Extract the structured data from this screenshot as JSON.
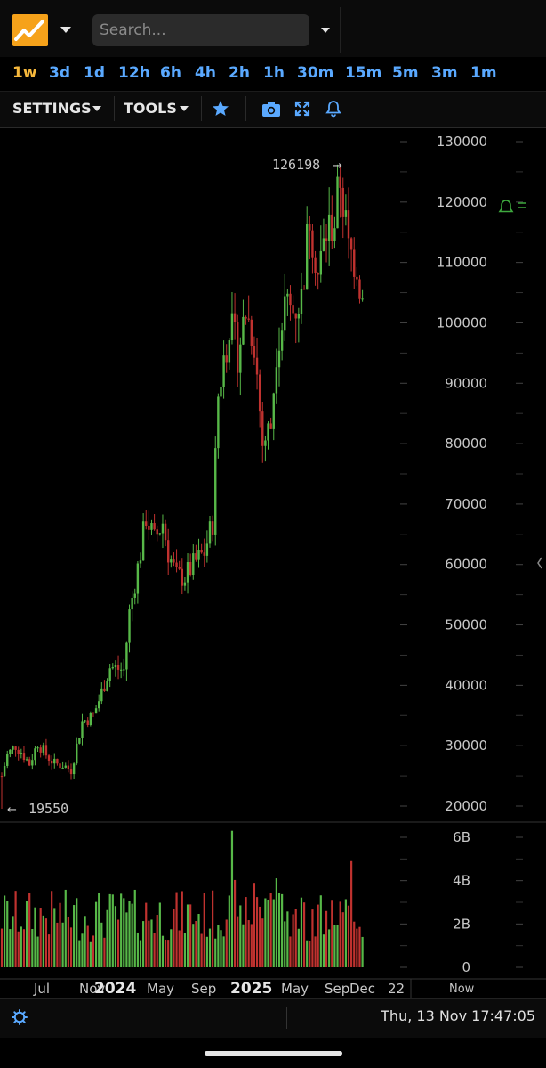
{
  "header": {
    "search_placeholder": "Search...",
    "timeframes": [
      "1w",
      "3d",
      "1d",
      "12h",
      "6h",
      "4h",
      "2h",
      "1h",
      "30m",
      "15m",
      "5m",
      "3m",
      "1m"
    ],
    "active_timeframe": "1w"
  },
  "toolbar": {
    "settings_label": "SETTINGS",
    "tools_label": "TOOLS"
  },
  "chart_data": {
    "type": "candlestick",
    "price_axis": {
      "ticks": [
        "130000",
        "120000",
        "110000",
        "100000",
        "90000",
        "80000",
        "70000",
        "60000",
        "50000",
        "40000",
        "30000",
        "20000"
      ],
      "range": [
        19000,
        131000
      ]
    },
    "volume_axis": {
      "ticks": [
        "6B",
        "4B",
        "2B",
        "0"
      ],
      "range": [
        0,
        6.8
      ]
    },
    "time_axis": {
      "labels": [
        "Jul",
        "Nov",
        "2024",
        "May",
        "Sep",
        "2025",
        "May",
        "Sep",
        "Dec",
        "22"
      ],
      "bold_labels": [
        "2024",
        "2025"
      ],
      "now_label": "Now"
    },
    "annotations": {
      "high_label": "126198",
      "low_label": "19550"
    },
    "colors": {
      "up": "#57b848",
      "down": "#c0322f",
      "background": "#000000",
      "grid": "#333333",
      "alert": "#3ea83e"
    },
    "price_path": [
      [
        0,
        25000
      ],
      [
        2,
        28500
      ],
      [
        5,
        30000
      ],
      [
        7,
        29000
      ],
      [
        10,
        27000
      ],
      [
        13,
        30500
      ],
      [
        16,
        28500
      ],
      [
        19,
        27000
      ],
      [
        22,
        26800
      ],
      [
        25,
        26000
      ],
      [
        29,
        34000
      ],
      [
        33,
        35000
      ],
      [
        35,
        37500
      ],
      [
        39,
        43000
      ],
      [
        44,
        42500
      ],
      [
        46,
        52000
      ],
      [
        50,
        62000
      ],
      [
        52,
        68000
      ],
      [
        55,
        64000
      ],
      [
        58,
        67000
      ],
      [
        60,
        62000
      ],
      [
        63,
        58000
      ],
      [
        66,
        58000
      ],
      [
        70,
        60500
      ],
      [
        73,
        62000
      ],
      [
        76,
        67000
      ],
      [
        78,
        88000
      ],
      [
        82,
        100000
      ],
      [
        85,
        95000
      ],
      [
        88,
        102000
      ],
      [
        91,
        97000
      ],
      [
        94,
        80000
      ],
      [
        97,
        83000
      ],
      [
        99,
        96000
      ],
      [
        102,
        103000
      ],
      [
        105,
        102000
      ],
      [
        108,
        104000
      ],
      [
        111,
        118000
      ],
      [
        114,
        108000
      ],
      [
        117,
        115000
      ],
      [
        120,
        117000
      ],
      [
        122,
        124000
      ],
      [
        125,
        112000
      ],
      [
        128,
        110000
      ],
      [
        130,
        103000
      ]
    ],
    "volume_seed": 7
  }
}
